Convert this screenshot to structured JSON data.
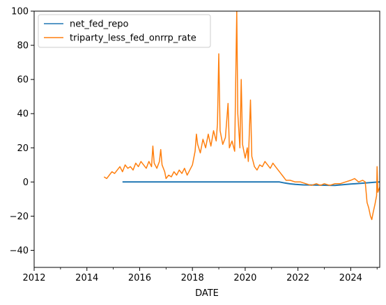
{
  "chart_data": {
    "type": "line",
    "title": "",
    "xlabel": "DATE",
    "ylabel": "",
    "xlim": [
      2012.0,
      2025.1
    ],
    "ylim": [
      -50,
      100
    ],
    "xticks": [
      2012,
      2014,
      2016,
      2018,
      2020,
      2022,
      2024
    ],
    "xtick_labels": [
      "2012",
      "2014",
      "2016",
      "2018",
      "2020",
      "2022",
      "2024"
    ],
    "yticks": [
      -40,
      -20,
      0,
      20,
      40,
      60,
      80,
      100
    ],
    "ytick_labels": [
      "−40",
      "−20",
      "0",
      "20",
      "40",
      "60",
      "80",
      "100"
    ],
    "grid": false,
    "legend_position": "top-left",
    "series": [
      {
        "name": "net_fed_repo",
        "color": "#1f77b4",
        "points": [
          [
            2015.35,
            0
          ],
          [
            2015.4,
            0
          ],
          [
            2019.7,
            0
          ],
          [
            2020.0,
            0
          ],
          [
            2020.5,
            0
          ],
          [
            2021.0,
            0
          ],
          [
            2021.3,
            0
          ],
          [
            2021.5,
            -0.6
          ],
          [
            2021.7,
            -1.1
          ],
          [
            2021.9,
            -1.4
          ],
          [
            2022.2,
            -1.7
          ],
          [
            2022.6,
            -1.8
          ],
          [
            2023.0,
            -1.9
          ],
          [
            2023.4,
            -2.0
          ],
          [
            2023.7,
            -1.6
          ],
          [
            2024.0,
            -1.2
          ],
          [
            2024.3,
            -0.9
          ],
          [
            2024.6,
            -0.5
          ],
          [
            2024.9,
            -0.2
          ],
          [
            2025.1,
            0
          ]
        ]
      },
      {
        "name": "triparty_less_fed_onrrp_rate",
        "color": "#ff7f0e",
        "points": [
          [
            2014.65,
            3
          ],
          [
            2014.75,
            2
          ],
          [
            2014.85,
            4
          ],
          [
            2014.95,
            6
          ],
          [
            2015.05,
            5
          ],
          [
            2015.15,
            7
          ],
          [
            2015.25,
            9
          ],
          [
            2015.35,
            6
          ],
          [
            2015.45,
            10
          ],
          [
            2015.55,
            8
          ],
          [
            2015.65,
            9
          ],
          [
            2015.75,
            7
          ],
          [
            2015.85,
            11
          ],
          [
            2015.95,
            9
          ],
          [
            2016.05,
            12
          ],
          [
            2016.15,
            10
          ],
          [
            2016.25,
            8
          ],
          [
            2016.35,
            12
          ],
          [
            2016.45,
            9
          ],
          [
            2016.5,
            21
          ],
          [
            2016.55,
            11
          ],
          [
            2016.65,
            8
          ],
          [
            2016.75,
            12
          ],
          [
            2016.8,
            19
          ],
          [
            2016.85,
            10
          ],
          [
            2016.95,
            6
          ],
          [
            2017.0,
            2
          ],
          [
            2017.1,
            4
          ],
          [
            2017.2,
            3
          ],
          [
            2017.3,
            6
          ],
          [
            2017.4,
            4
          ],
          [
            2017.5,
            7
          ],
          [
            2017.6,
            5
          ],
          [
            2017.7,
            8
          ],
          [
            2017.8,
            4
          ],
          [
            2017.9,
            7
          ],
          [
            2018.0,
            10
          ],
          [
            2018.1,
            18
          ],
          [
            2018.15,
            28
          ],
          [
            2018.2,
            22
          ],
          [
            2018.3,
            17
          ],
          [
            2018.4,
            25
          ],
          [
            2018.5,
            20
          ],
          [
            2018.6,
            28
          ],
          [
            2018.7,
            21
          ],
          [
            2018.8,
            30
          ],
          [
            2018.9,
            24
          ],
          [
            2018.95,
            34
          ],
          [
            2019.0,
            75
          ],
          [
            2019.05,
            30
          ],
          [
            2019.15,
            22
          ],
          [
            2019.25,
            26
          ],
          [
            2019.35,
            46
          ],
          [
            2019.4,
            20
          ],
          [
            2019.5,
            24
          ],
          [
            2019.6,
            18
          ],
          [
            2019.68,
            100
          ],
          [
            2019.72,
            40
          ],
          [
            2019.8,
            20
          ],
          [
            2019.85,
            60
          ],
          [
            2019.9,
            22
          ],
          [
            2020.0,
            14
          ],
          [
            2020.08,
            20
          ],
          [
            2020.12,
            12
          ],
          [
            2020.2,
            48
          ],
          [
            2020.25,
            15
          ],
          [
            2020.35,
            9
          ],
          [
            2020.45,
            7
          ],
          [
            2020.55,
            10
          ],
          [
            2020.65,
            9
          ],
          [
            2020.75,
            12
          ],
          [
            2020.85,
            10
          ],
          [
            2020.95,
            8
          ],
          [
            2021.05,
            11
          ],
          [
            2021.15,
            9
          ],
          [
            2021.25,
            7
          ],
          [
            2021.35,
            5
          ],
          [
            2021.45,
            3
          ],
          [
            2021.55,
            1
          ],
          [
            2021.7,
            1
          ],
          [
            2021.9,
            0
          ],
          [
            2022.1,
            0
          ],
          [
            2022.3,
            -1
          ],
          [
            2022.5,
            -2
          ],
          [
            2022.7,
            -1
          ],
          [
            2022.85,
            -2
          ],
          [
            2023.0,
            -1
          ],
          [
            2023.2,
            -2
          ],
          [
            2023.4,
            -1
          ],
          [
            2023.6,
            -1
          ],
          [
            2023.8,
            0
          ],
          [
            2024.0,
            1
          ],
          [
            2024.15,
            2
          ],
          [
            2024.3,
            0
          ],
          [
            2024.45,
            1
          ],
          [
            2024.55,
            0
          ],
          [
            2024.62,
            -12
          ],
          [
            2024.68,
            -15
          ],
          [
            2024.75,
            -20
          ],
          [
            2024.8,
            -22
          ],
          [
            2024.85,
            -18
          ],
          [
            2024.92,
            -13
          ],
          [
            2024.98,
            -8
          ],
          [
            2025.0,
            9
          ],
          [
            2025.03,
            -6
          ],
          [
            2025.1,
            -3
          ]
        ]
      }
    ]
  }
}
